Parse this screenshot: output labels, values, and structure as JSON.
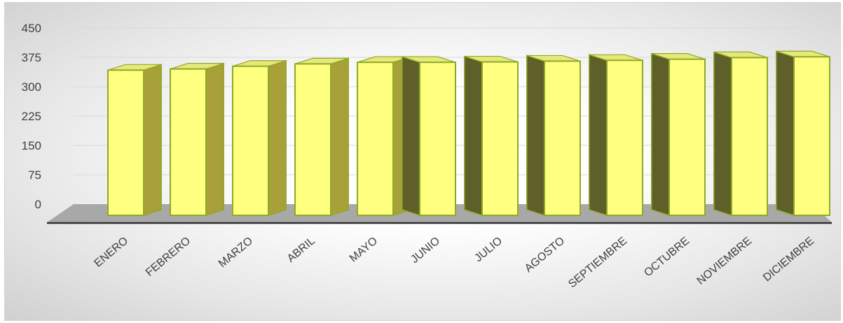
{
  "chart_data": {
    "type": "bar",
    "style": "3d-column",
    "categories": [
      "ENERO",
      "FEBRERO",
      "MARZO",
      "ABRIL",
      "MAYO",
      "JUNIO",
      "JULIO",
      "AGOSTO",
      "SEPTIEMBRE",
      "OCTUBRE",
      "NOVIEMBRE",
      "DICIEMBRE"
    ],
    "values": [
      378,
      381,
      388,
      394,
      398,
      398,
      399,
      401,
      403,
      406,
      410,
      412
    ],
    "ylim": [
      0,
      450
    ],
    "yticks": [
      "0",
      "75",
      "150",
      "225",
      "300",
      "375",
      "450"
    ],
    "grid": true,
    "colors": {
      "bar_front": "#ffff80",
      "bar_border": "#8ea928",
      "bar_side_light": "#a8a038",
      "bar_side_dark": "#5f5f2a",
      "floor": "#a8a8a8",
      "axis": "#333333",
      "gridline": "#d9d9d9"
    }
  }
}
